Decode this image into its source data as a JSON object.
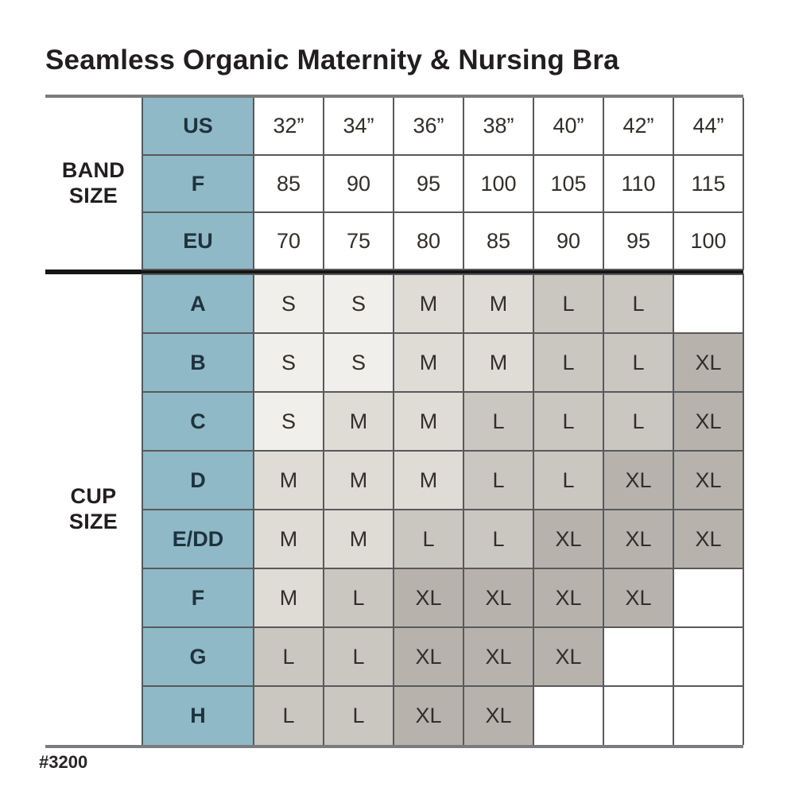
{
  "title": "Seamless Organic Maternity & Nursing Bra",
  "footer": {
    "product_code": "#3200"
  },
  "colors": {
    "header_fill": "#8fb9c6",
    "grid_line": "#58595b",
    "outer_rule": "#7a7b7e",
    "section_divider": "#161616",
    "cell_fills": {
      "S": "#f1efeb",
      "M": "#dfdcd6",
      "L": "#cac6c0",
      "XL": "#b7b3ac",
      "": "#ffffff"
    }
  },
  "band_section": {
    "label": "BAND SIZE",
    "rows": [
      {
        "label": "US",
        "values": [
          "32”",
          "34”",
          "36”",
          "38”",
          "40”",
          "42”",
          "44”"
        ]
      },
      {
        "label": "F",
        "values": [
          "85",
          "90",
          "95",
          "100",
          "105",
          "110",
          "115"
        ]
      },
      {
        "label": "EU",
        "values": [
          "70",
          "75",
          "80",
          "85",
          "90",
          "95",
          "100"
        ]
      }
    ]
  },
  "cup_section": {
    "label": "CUP SIZE",
    "rows": [
      {
        "label": "A",
        "values": [
          "S",
          "S",
          "M",
          "M",
          "L",
          "L",
          ""
        ]
      },
      {
        "label": "B",
        "values": [
          "S",
          "S",
          "M",
          "M",
          "L",
          "L",
          "XL"
        ]
      },
      {
        "label": "C",
        "values": [
          "S",
          "M",
          "M",
          "L",
          "L",
          "L",
          "XL"
        ]
      },
      {
        "label": "D",
        "values": [
          "M",
          "M",
          "M",
          "L",
          "L",
          "XL",
          "XL"
        ]
      },
      {
        "label": "E/DD",
        "values": [
          "M",
          "M",
          "L",
          "L",
          "XL",
          "XL",
          "XL"
        ]
      },
      {
        "label": "F",
        "values": [
          "M",
          "L",
          "XL",
          "XL",
          "XL",
          "XL",
          ""
        ]
      },
      {
        "label": "G",
        "values": [
          "L",
          "L",
          "XL",
          "XL",
          "XL",
          "",
          ""
        ]
      },
      {
        "label": "H",
        "values": [
          "L",
          "L",
          "XL",
          "XL",
          "",
          "",
          ""
        ]
      }
    ]
  },
  "chart_data": {
    "type": "table",
    "title": "Seamless Organic Maternity & Nursing Bra",
    "footnote": "#3200",
    "row_groups": [
      {
        "group": "BAND SIZE",
        "rows": [
          {
            "label": "US",
            "values": [
              "32\"",
              "34\"",
              "36\"",
              "38\"",
              "40\"",
              "42\"",
              "44\""
            ]
          },
          {
            "label": "F",
            "values": [
              85,
              90,
              95,
              100,
              105,
              110,
              115
            ]
          },
          {
            "label": "EU",
            "values": [
              70,
              75,
              80,
              85,
              90,
              95,
              100
            ]
          }
        ]
      },
      {
        "group": "CUP SIZE",
        "rows": [
          {
            "label": "A",
            "values": [
              "S",
              "S",
              "M",
              "M",
              "L",
              "L",
              null
            ]
          },
          {
            "label": "B",
            "values": [
              "S",
              "S",
              "M",
              "M",
              "L",
              "L",
              "XL"
            ]
          },
          {
            "label": "C",
            "values": [
              "S",
              "M",
              "M",
              "L",
              "L",
              "L",
              "XL"
            ]
          },
          {
            "label": "D",
            "values": [
              "M",
              "M",
              "M",
              "L",
              "L",
              "XL",
              "XL"
            ]
          },
          {
            "label": "E/DD",
            "values": [
              "M",
              "M",
              "L",
              "L",
              "XL",
              "XL",
              "XL"
            ]
          },
          {
            "label": "F",
            "values": [
              "M",
              "L",
              "XL",
              "XL",
              "XL",
              "XL",
              null
            ]
          },
          {
            "label": "G",
            "values": [
              "L",
              "L",
              "XL",
              "XL",
              "XL",
              null,
              null
            ]
          },
          {
            "label": "H",
            "values": [
              "L",
              "L",
              "XL",
              "XL",
              null,
              null,
              null
            ]
          }
        ]
      }
    ]
  }
}
